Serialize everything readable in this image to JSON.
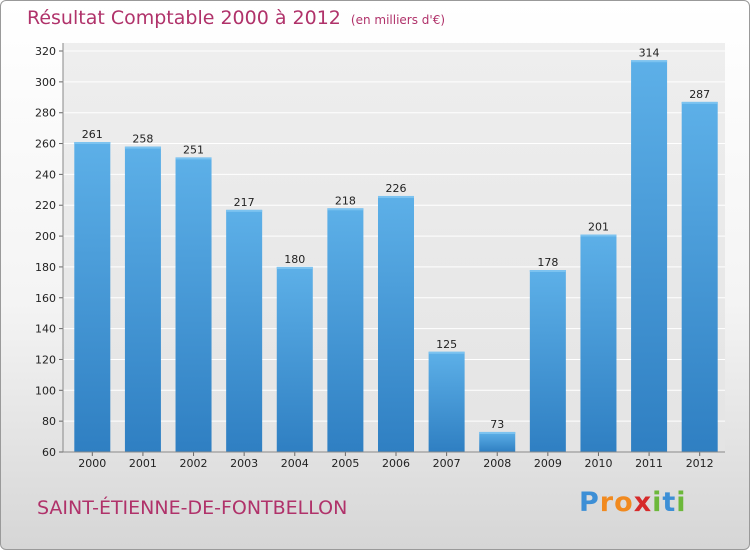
{
  "title": "Résultat Comptable 2000 à 2012",
  "subtitle": "(en milliers d'€)",
  "commune": "SAINT-ÉTIENNE-DE-FONTBELLON",
  "logo": {
    "letters": [
      "P",
      "r",
      "o",
      "x",
      "i",
      "t",
      "i"
    ],
    "colors": [
      "#3d8fd6",
      "#f18a1f",
      "#f18a1f",
      "#d62a2a",
      "#6cb83a",
      "#3d8fd6",
      "#6cb83a"
    ]
  },
  "colors": {
    "bar": "#2f86cc",
    "bar_light": "#5db0e8",
    "title": "#b0326a"
  },
  "chart_data": {
    "type": "bar",
    "title": "Résultat Comptable 2000 à 2012",
    "categories": [
      "2000",
      "2001",
      "2002",
      "2003",
      "2004",
      "2005",
      "2006",
      "2007",
      "2008",
      "2009",
      "2010",
      "2011",
      "2012"
    ],
    "values": [
      261,
      258,
      251,
      217,
      180,
      218,
      226,
      125,
      73,
      178,
      201,
      314,
      287
    ],
    "ylim": [
      60,
      320
    ],
    "yticks": [
      60,
      80,
      100,
      120,
      140,
      160,
      180,
      200,
      220,
      240,
      260,
      280,
      300,
      320
    ],
    "grid": true,
    "legend": "none"
  }
}
